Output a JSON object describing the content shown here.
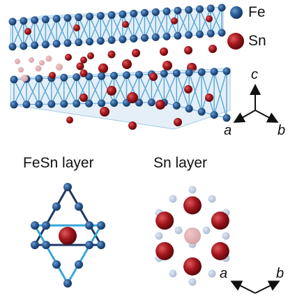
{
  "legend": {
    "fe_label": "Fe",
    "sn_label": "Sn"
  },
  "panels": {
    "fesn_title": "FeSn layer",
    "sn_title": "Sn layer"
  },
  "axes_top": {
    "c": "c",
    "a": "a",
    "b": "b"
  },
  "axes_bottom": {
    "a": "a",
    "b": "b"
  },
  "colors": {
    "fe": "#2a5c96",
    "fe_dark": "#1b3f6b",
    "sn": "#a3161c",
    "sn_dark": "#6d0e12",
    "bond": "#4a9fd0",
    "bond_dark": "#1e3766"
  }
}
